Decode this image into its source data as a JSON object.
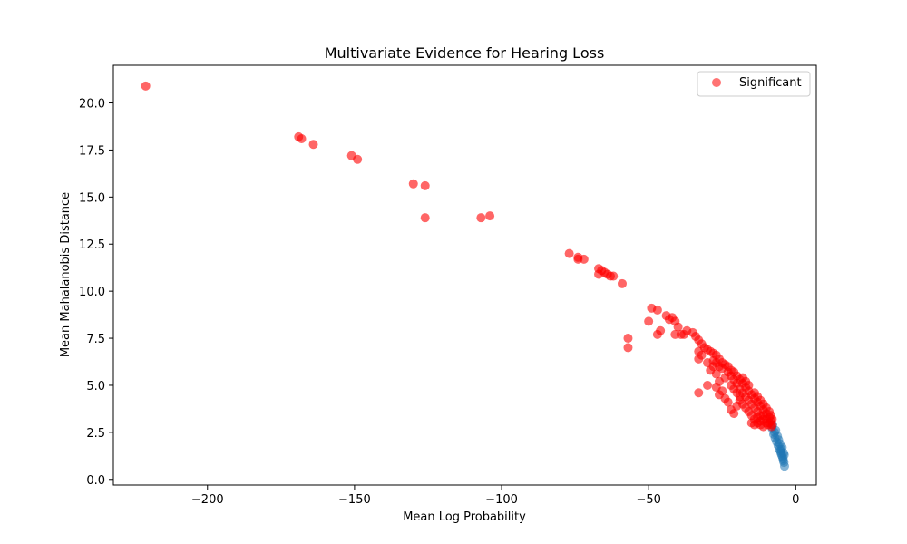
{
  "chart_data": {
    "type": "scatter",
    "title": "Multivariate Evidence for Hearing Loss",
    "xlabel": "Mean Log Probability",
    "ylabel": "Mean Mahalanobis Distance",
    "xlim": [
      -232,
      7
    ],
    "ylim": [
      -0.3,
      22
    ],
    "xticks": [
      -200,
      -150,
      -100,
      -50,
      0
    ],
    "yticks": [
      0.0,
      2.5,
      5.0,
      7.5,
      10.0,
      12.5,
      15.0,
      17.5,
      20.0
    ],
    "xtick_labels": [
      "−200",
      "−150",
      "−100",
      "−50",
      "0"
    ],
    "ytick_labels": [
      "0.0",
      "2.5",
      "5.0",
      "7.5",
      "10.0",
      "12.5",
      "15.0",
      "17.5",
      "20.0"
    ],
    "grid": false,
    "legend": {
      "placement": "top-right",
      "entries": [
        "Significant"
      ]
    },
    "colors": {
      "background_points": "#1f77b4",
      "significant": "#ff0000",
      "overlap": "#c0283c"
    },
    "series": [
      {
        "values_note": "",
        "color": "#1f77b4",
        "points": [
          [
            -8.0,
            2.7
          ],
          [
            -7.5,
            2.4
          ],
          [
            -7.0,
            2.2
          ],
          [
            -6.5,
            2.0
          ],
          [
            -6.0,
            1.8
          ],
          [
            -5.5,
            1.6
          ],
          [
            -5.2,
            1.5
          ],
          [
            -5.0,
            1.4
          ],
          [
            -4.8,
            1.3
          ],
          [
            -4.5,
            1.2
          ],
          [
            -4.2,
            1.0
          ],
          [
            -4.0,
            0.9
          ],
          [
            -3.8,
            0.7
          ],
          [
            -6.8,
            2.6
          ],
          [
            -7.8,
            2.9
          ],
          [
            -5.8,
            2.1
          ],
          [
            -4.6,
            1.7
          ],
          [
            -4.3,
            1.1
          ],
          [
            -3.9,
            1.3
          ],
          [
            -7.2,
            2.5
          ],
          [
            -6.2,
            2.3
          ],
          [
            -5.4,
            1.9
          ],
          [
            -4.9,
            1.6
          ],
          [
            -4.1,
            1.4
          ]
        ]
      },
      {
        "name": "Significant",
        "color": "#ff0000",
        "points": [
          [
            -221,
            20.9
          ],
          [
            -169,
            18.2
          ],
          [
            -168,
            18.1
          ],
          [
            -164,
            17.8
          ],
          [
            -151,
            17.2
          ],
          [
            -149,
            17.0
          ],
          [
            -130,
            15.7
          ],
          [
            -126,
            15.6
          ],
          [
            -126,
            13.9
          ],
          [
            -107,
            13.9
          ],
          [
            -104,
            14.0
          ],
          [
            -77,
            12.0
          ],
          [
            -74,
            11.8
          ],
          [
            -74,
            11.7
          ],
          [
            -72,
            11.7
          ],
          [
            -67,
            11.2
          ],
          [
            -66,
            11.1
          ],
          [
            -65,
            11.0
          ],
          [
            -64,
            10.9
          ],
          [
            -63,
            10.8
          ],
          [
            -62,
            10.8
          ],
          [
            -67,
            10.9
          ],
          [
            -59,
            10.4
          ],
          [
            -57,
            7.5
          ],
          [
            -57,
            7.0
          ],
          [
            -49,
            9.1
          ],
          [
            -47,
            9.0
          ],
          [
            -50,
            8.4
          ],
          [
            -47,
            7.7
          ],
          [
            -46,
            7.9
          ],
          [
            -44,
            8.7
          ],
          [
            -43,
            8.5
          ],
          [
            -42,
            8.6
          ],
          [
            -41,
            8.4
          ],
          [
            -40,
            8.1
          ],
          [
            -41,
            7.7
          ],
          [
            -39,
            7.7
          ],
          [
            -38,
            7.7
          ],
          [
            -37,
            7.9
          ],
          [
            -35,
            7.8
          ],
          [
            -34,
            7.6
          ],
          [
            -33,
            7.4
          ],
          [
            -32,
            7.2
          ],
          [
            -31,
            7.0
          ],
          [
            -30,
            6.9
          ],
          [
            -29,
            6.8
          ],
          [
            -28,
            6.7
          ],
          [
            -27,
            6.6
          ],
          [
            -26,
            6.4
          ],
          [
            -25,
            6.2
          ],
          [
            -24,
            6.1
          ],
          [
            -23,
            6.0
          ],
          [
            -22,
            5.8
          ],
          [
            -21,
            5.7
          ],
          [
            -20,
            5.5
          ],
          [
            -19,
            5.3
          ],
          [
            -18,
            5.1
          ],
          [
            -17,
            4.9
          ],
          [
            -16,
            4.7
          ],
          [
            -15,
            4.5
          ],
          [
            -14,
            4.3
          ],
          [
            -13,
            4.1
          ],
          [
            -12,
            3.9
          ],
          [
            -11,
            3.7
          ],
          [
            -10,
            3.5
          ],
          [
            -9,
            3.3
          ],
          [
            -8.5,
            3.1
          ],
          [
            -8,
            2.9
          ],
          [
            -33,
            6.8
          ],
          [
            -32,
            6.6
          ],
          [
            -33,
            6.4
          ],
          [
            -30,
            6.2
          ],
          [
            -29,
            5.8
          ],
          [
            -28,
            6.0
          ],
          [
            -27,
            5.6
          ],
          [
            -26,
            5.2
          ],
          [
            -27,
            4.9
          ],
          [
            -25,
            4.7
          ],
          [
            -26,
            4.5
          ],
          [
            -24,
            4.3
          ],
          [
            -23,
            4.1
          ],
          [
            -22,
            3.7
          ],
          [
            -21,
            3.5
          ],
          [
            -20,
            3.9
          ],
          [
            -19,
            4.2
          ],
          [
            -18,
            4.0
          ],
          [
            -17,
            3.8
          ],
          [
            -16,
            3.6
          ],
          [
            -15,
            3.4
          ],
          [
            -14,
            3.2
          ],
          [
            -13,
            3.0
          ],
          [
            -12,
            2.9
          ],
          [
            -11,
            2.8
          ],
          [
            -30,
            5.0
          ],
          [
            -33,
            4.6
          ],
          [
            -24,
            5.4
          ],
          [
            -22,
            5.0
          ],
          [
            -21,
            4.8
          ],
          [
            -20,
            4.6
          ],
          [
            -19,
            4.4
          ],
          [
            -18,
            4.6
          ],
          [
            -17,
            4.4
          ],
          [
            -16,
            4.2
          ],
          [
            -15,
            4.0
          ],
          [
            -14,
            3.8
          ],
          [
            -13,
            3.6
          ],
          [
            -12,
            3.4
          ],
          [
            -11,
            3.2
          ],
          [
            -10,
            3.0
          ],
          [
            -9.5,
            2.9
          ],
          [
            -16,
            5.0
          ],
          [
            -17,
            5.2
          ],
          [
            -18,
            5.4
          ],
          [
            -19,
            4.8
          ],
          [
            -20,
            5.1
          ],
          [
            -21,
            5.3
          ],
          [
            -22,
            5.5
          ],
          [
            -23,
            5.7
          ],
          [
            -25,
            5.9
          ],
          [
            -26,
            6.0
          ],
          [
            -27,
            6.2
          ],
          [
            -28,
            6.3
          ],
          [
            -14,
            4.6
          ],
          [
            -13,
            4.4
          ],
          [
            -12,
            4.2
          ],
          [
            -11,
            4.0
          ],
          [
            -10,
            3.8
          ],
          [
            -9,
            3.6
          ],
          [
            -8.5,
            3.4
          ],
          [
            -8,
            3.2
          ],
          [
            -15,
            3.0
          ],
          [
            -14,
            2.9
          ],
          [
            -13,
            3.3
          ],
          [
            -12,
            3.1
          ],
          [
            -11,
            3.4
          ],
          [
            -10,
            3.2
          ],
          [
            -9,
            3.0
          ],
          [
            -8.2,
            2.8
          ]
        ]
      }
    ]
  }
}
